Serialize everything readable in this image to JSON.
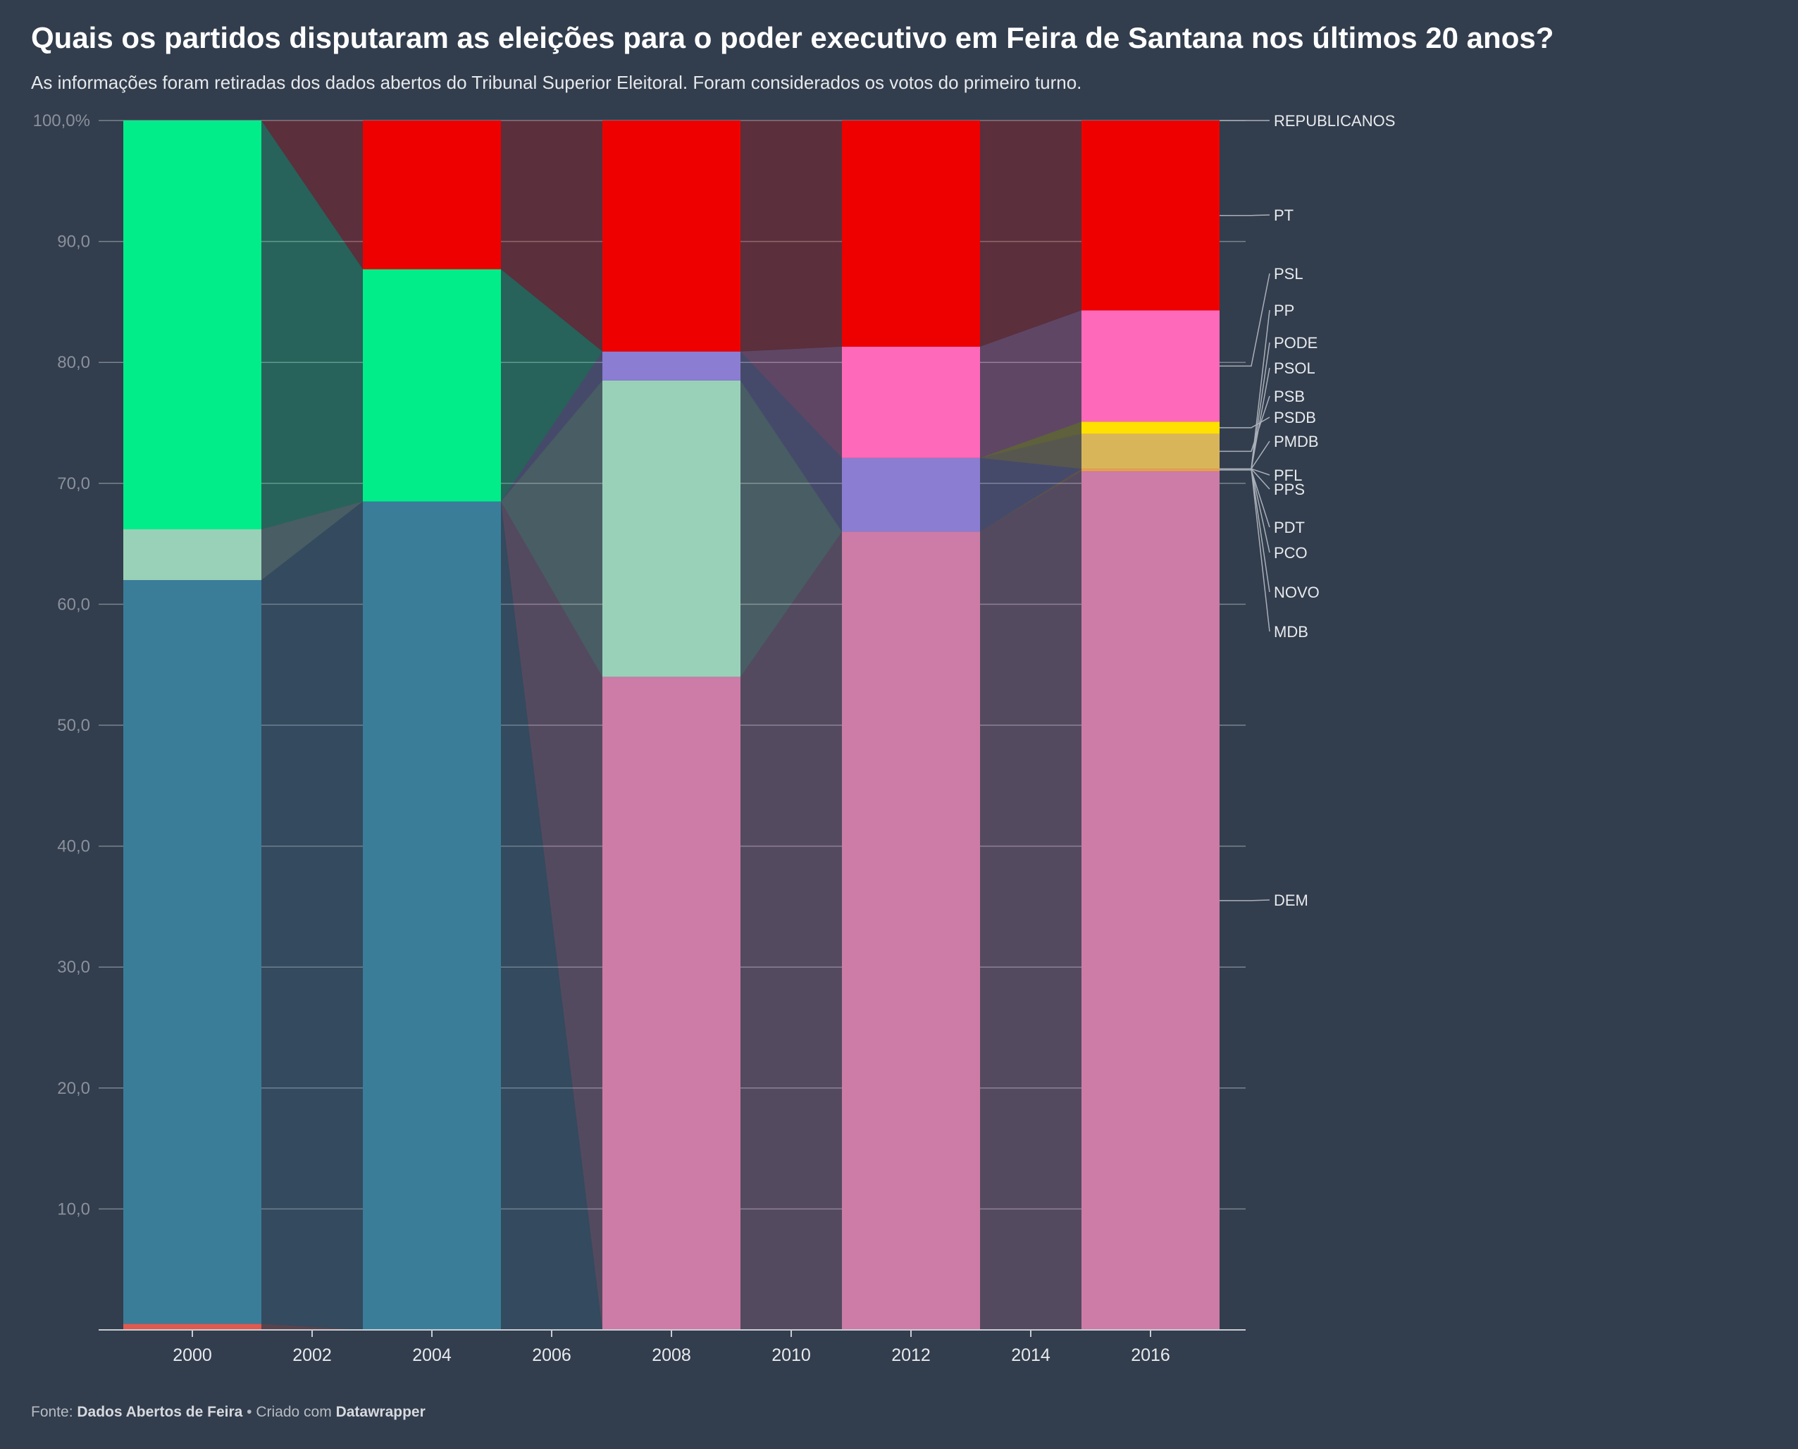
{
  "title": "Quais os partidos disputaram as eleições para o poder executivo em Feira de Santana nos últimos 20 anos?",
  "subtitle": "As informações foram retiradas dos dados abertos do Tribunal Superior Eleitoral. Foram considerados os votos do primeiro turno.",
  "footer": {
    "source_prefix": "Fonte: ",
    "source_name": "Dados Abertos de Feira",
    "separator": " • Criado com ",
    "tool": "Datawrapper"
  },
  "chart_data": {
    "type": "bar",
    "stacked": true,
    "unit": "%",
    "categories": [
      "2000",
      "2004",
      "2008",
      "2012",
      "2016"
    ],
    "x_ticks": [
      "2000",
      "2002",
      "2004",
      "2006",
      "2008",
      "2010",
      "2012",
      "2014",
      "2016"
    ],
    "ylim": [
      0,
      100
    ],
    "y_ticks": [
      "",
      "10,0",
      "20,0",
      "30,0",
      "40,0",
      "50,0",
      "60,0",
      "70,0",
      "80,0",
      "90,0",
      "100,0%"
    ],
    "grid": true,
    "legend": "right-labels",
    "series": [
      {
        "name": "PCO",
        "color": "#e05a4f",
        "values": [
          0.5,
          0,
          0,
          0,
          0
        ]
      },
      {
        "name": "PFL",
        "color": "#3a7d99",
        "values": [
          61.5,
          68.5,
          0,
          0,
          0
        ]
      },
      {
        "name": "DEM",
        "color": "#cc7ca6",
        "values": [
          0,
          0,
          54,
          66,
          71
        ]
      },
      {
        "name": "PDT",
        "color": "#f0a050",
        "values": [
          0,
          0,
          0,
          0,
          0.2
        ]
      },
      {
        "name": "PMDB",
        "color": "#99d1b8",
        "values": [
          4.2,
          0,
          24.5,
          0,
          0
        ]
      },
      {
        "name": "PPS",
        "color": "#8b7dd1",
        "values": [
          0,
          0,
          2.4,
          6.1,
          0
        ]
      },
      {
        "name": "PSB",
        "color": "#d9b55a",
        "values": [
          0,
          0,
          0,
          0,
          2.9
        ]
      },
      {
        "name": "PSDB",
        "color": "#ffe000",
        "values": [
          0,
          0,
          0,
          0,
          1
        ]
      },
      {
        "name": "PP",
        "color": "#00ed8a",
        "values": [
          33.8,
          19.2,
          0,
          0,
          0
        ]
      },
      {
        "name": "PSL",
        "color": "#ff69b9",
        "values": [
          0,
          0,
          0,
          9.2,
          9.2
        ]
      },
      {
        "name": "PT",
        "color": "#ee0000",
        "values": [
          0,
          12.3,
          19.1,
          18.7,
          15.7
        ]
      }
    ],
    "labels": [
      "REPUBLICANOS",
      "PT",
      "PSL",
      "PP",
      "PODE",
      "PSOL",
      "PSB",
      "PSDB",
      "PMDB",
      "PFL",
      "PPS",
      "PDT",
      "PCO",
      "NOVO",
      "MDB",
      "DEM"
    ]
  }
}
